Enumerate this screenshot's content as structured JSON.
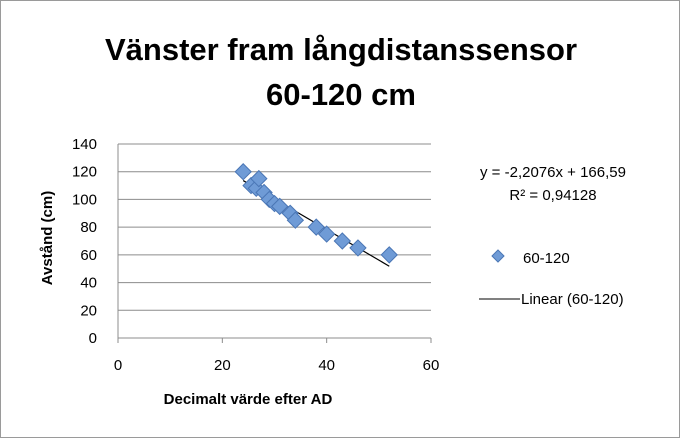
{
  "chart_data": {
    "type": "scatter",
    "title": [
      "Vänster fram långdistanssensor",
      "60-120 cm"
    ],
    "xlabel": "Decimalt värde efter AD",
    "ylabel": "Avstånd (cm)",
    "xlim": [
      0,
      60
    ],
    "ylim": [
      0,
      140
    ],
    "x_ticks": [
      0,
      20,
      40,
      60
    ],
    "y_ticks": [
      0,
      20,
      40,
      60,
      80,
      100,
      120,
      140
    ],
    "grid": "horizontal",
    "legend_position": "right",
    "series": [
      {
        "name": "60-120",
        "marker": "diamond",
        "color": "#6f9bd6",
        "x": [
          24,
          25.5,
          26.5,
          27,
          28,
          29,
          30,
          31,
          33,
          34,
          38,
          40,
          43,
          46,
          52
        ],
        "y": [
          120,
          110,
          108,
          115,
          105,
          100,
          97,
          95,
          90,
          85,
          80,
          75,
          70,
          65,
          60
        ]
      }
    ],
    "trendline": {
      "name": "Linear (60-120)",
      "legend_label": "Linear (60-120)",
      "color": "#000000",
      "slope": -2.2076,
      "intercept": 166.59,
      "x_range": [
        24,
        52
      ],
      "equation_label": "y = -2,2076x + 166,59",
      "r2_label": "R² = 0,94128"
    }
  }
}
